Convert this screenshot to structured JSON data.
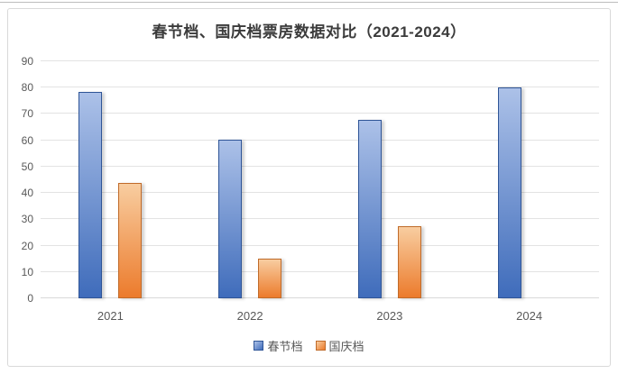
{
  "page": {
    "background": "#ffffff",
    "top_rule_color": "#bdbdbd",
    "frame_border_color": "#d9d9d9"
  },
  "chart_data": {
    "type": "bar",
    "title": "春节档、国庆档票房数据对比（2021-2024）",
    "categories": [
      "2021",
      "2022",
      "2023",
      "2024"
    ],
    "series": [
      {
        "name": "春节档",
        "values": [
          78.4,
          60.4,
          67.6,
          80.2
        ],
        "color": "#3f6cbb",
        "color_light": "#acc1e8",
        "border_color": "#2f5597"
      },
      {
        "name": "国庆档",
        "values": [
          43.9,
          15.0,
          27.3,
          null
        ],
        "color": "#ec7b2c",
        "color_light": "#f8cda0",
        "border_color": "#c06b2a"
      }
    ],
    "ylim": [
      0,
      90
    ],
    "yticks": [
      0,
      10,
      20,
      30,
      40,
      50,
      60,
      70,
      80,
      90
    ],
    "xlabel": "",
    "ylabel": "",
    "grid": true,
    "legend_position": "bottom",
    "gridline_color": "#e3e3e3",
    "tick_label_color": "#595959",
    "title_color": "#3b3b3b"
  }
}
